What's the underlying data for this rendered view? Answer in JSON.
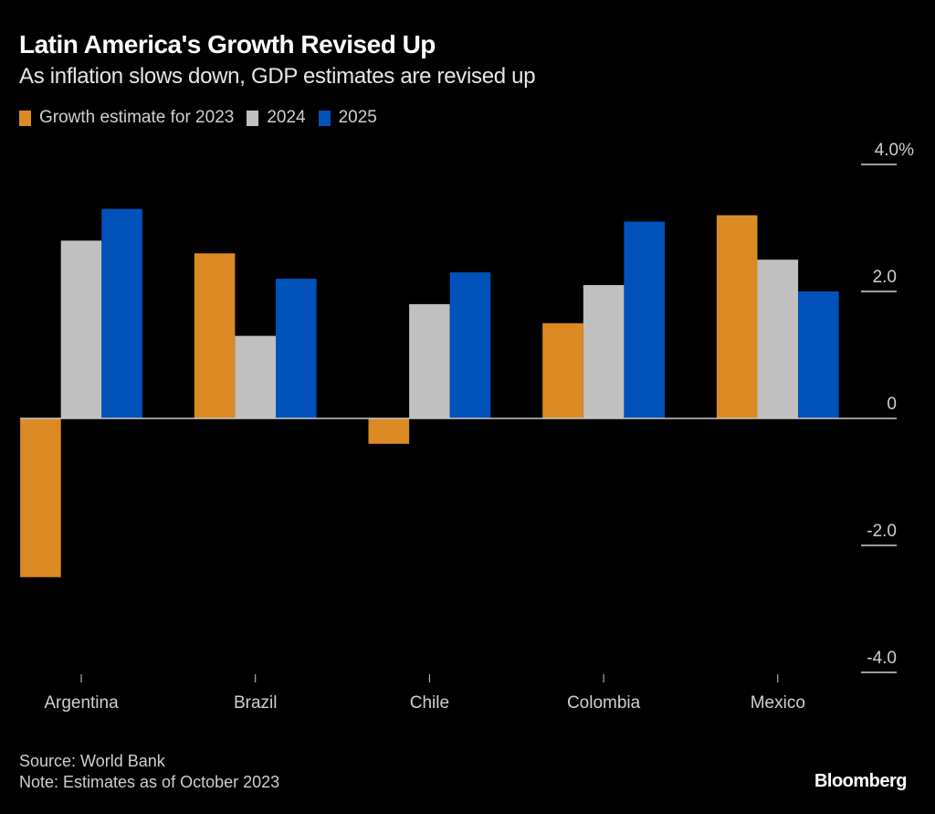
{
  "header": {
    "title": "Latin America's Growth Revised Up",
    "subtitle": "As inflation slows down, GDP estimates are revised up"
  },
  "footer": {
    "source": "Source: World Bank",
    "note": "Note: Estimates as of October 2023",
    "brand": "Bloomberg"
  },
  "chart_data": {
    "type": "bar",
    "title": "Latin America's Growth Revised Up",
    "subtitle": "As inflation slows down, GDP estimates are revised up",
    "xlabel": "",
    "ylabel": "",
    "categories": [
      "Argentina",
      "Brazil",
      "Chile",
      "Colombia",
      "Mexico"
    ],
    "series": [
      {
        "name": "Growth estimate for 2023",
        "color": "#db8a24",
        "values": [
          -2.5,
          2.6,
          -0.4,
          1.5,
          3.2
        ]
      },
      {
        "name": "2024",
        "color": "#c0c0c0",
        "values": [
          2.8,
          1.3,
          1.8,
          2.1,
          2.5
        ]
      },
      {
        "name": "2025",
        "color": "#0052ba",
        "values": [
          3.3,
          2.2,
          2.3,
          3.1,
          2.0
        ]
      }
    ],
    "ylim": [
      -4.0,
      4.0
    ],
    "yticks": [
      {
        "value": 4.0,
        "label": "4.0%"
      },
      {
        "value": 2.0,
        "label": "2.0"
      },
      {
        "value": 0,
        "label": "0"
      },
      {
        "value": -2.0,
        "label": "-2.0"
      },
      {
        "value": -4.0,
        "label": "-4.0"
      }
    ],
    "y_axis_side": "right",
    "grid": false,
    "legend_position": "top-left"
  }
}
